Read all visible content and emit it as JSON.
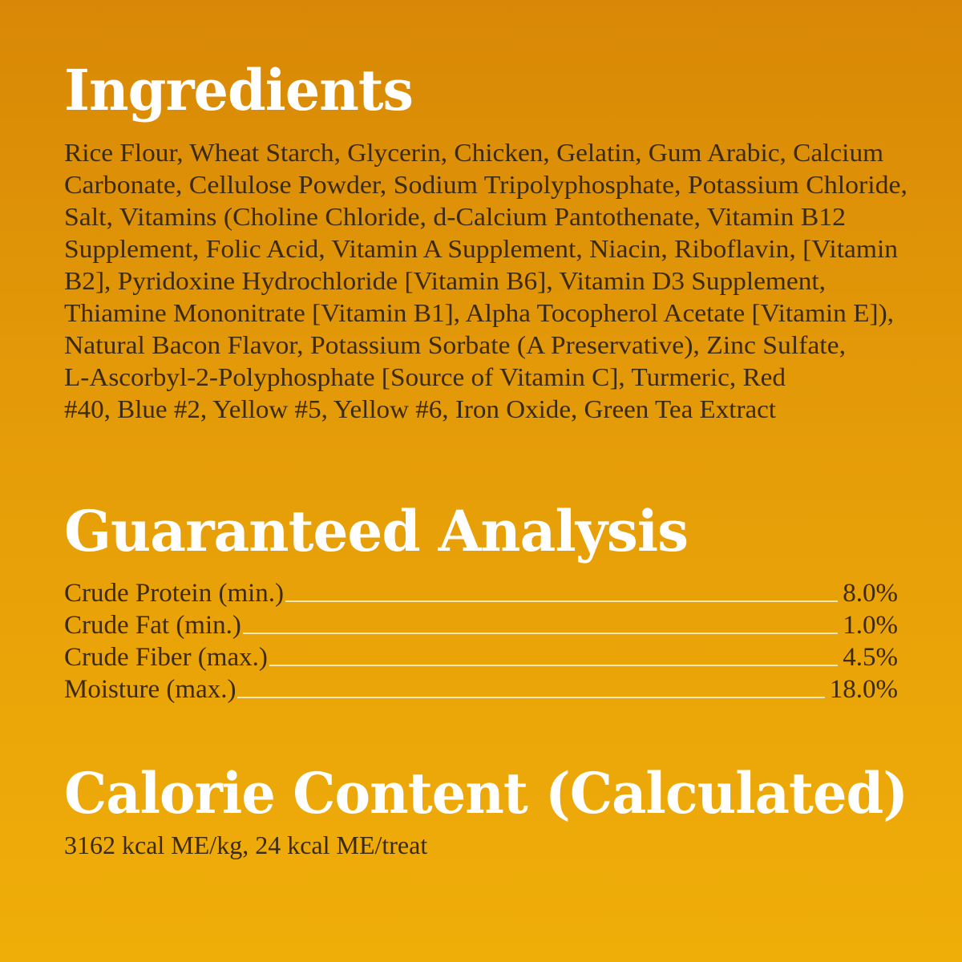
{
  "ingredients": {
    "title": "Ingredients",
    "lines": [
      "Rice Flour, Wheat Starch, Glycerin, Chicken, Gelatin, Gum Arabic, Calcium",
      "Carbonate, Cellulose Powder, Sodium Tripolyphosphate, Potassium Chloride,",
      "Salt, Vitamins  (Choline Chloride, d-Calcium Pantothenate, Vitamin B12",
      "Supplement, Folic Acid, Vitamin A Supplement, Niacin, Riboflavin, [Vitamin",
      "B2], Pyridoxine Hydrochloride [Vitamin B6], Vitamin D3 Supplement,",
      "Thiamine Mononitrate [Vitamin B1], Alpha Tocopherol Acetate [Vitamin E]),",
      "Natural Bacon Flavor, Potassium Sorbate (A Preservative), Zinc Sulfate,",
      "L-Ascorbyl-2-Polyphosphate [Source of Vitamin C], Turmeric, Red",
      "#40, Blue #2, Yellow #5, Yellow #6, Iron Oxide, Green Tea Extract"
    ]
  },
  "analysis": {
    "title": "Guaranteed Analysis",
    "rows": [
      {
        "label": "Crude Protein (min.)",
        "value": "8.0%"
      },
      {
        "label": "Crude Fat (min.)",
        "value": "1.0%"
      },
      {
        "label": "Crude Fiber (max.)",
        "value": "4.5%"
      },
      {
        "label": "Moisture (max.)",
        "value": "18.0%"
      }
    ]
  },
  "calorie": {
    "title": "Calorie Content (Calculated)",
    "text": "3162 kcal ME/kg, 24 kcal ME/treat"
  },
  "colors": {
    "background_top": "#d88806",
    "background_bottom": "#f0ae09",
    "heading": "#ffffff",
    "body_text": "#3b2a0c"
  }
}
